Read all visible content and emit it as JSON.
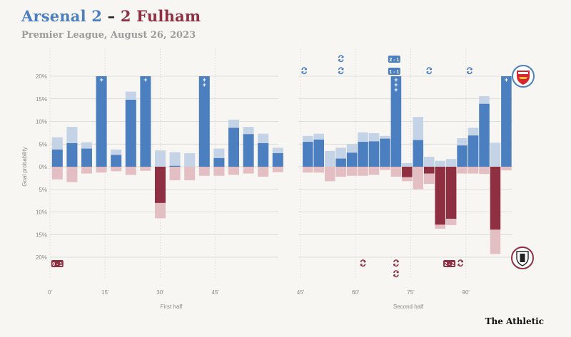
{
  "header": {
    "home_part": "Arsenal 2",
    "dash": " – ",
    "away_part": "2 Fulham",
    "subtitle": "Premier League, August 26, 2023",
    "brand": "The Athletic"
  },
  "colors": {
    "home": "#4b7fbf",
    "home_light": "#c4d3e6",
    "away": "#8e3041",
    "away_light": "#e3bec3",
    "grid": "#d4d4d0",
    "text": "#8a8a8a",
    "background": "#f7f6f2"
  },
  "chart_data": {
    "type": "bar",
    "ylabel": "Goal probability",
    "y_ticks": [
      "20%",
      "15%",
      "10%",
      "5%",
      "0%",
      "5%",
      "10%",
      "15%",
      "20%"
    ],
    "ylim": [
      -20,
      20
    ],
    "legend": {
      "top": "Arsenal badge (home, upward bars)",
      "bottom": "Fulham badge (away, downward bars)"
    },
    "panels": [
      {
        "xlabel": "First half",
        "x_ticks": [
          "0'",
          "15'",
          "30'",
          "45'"
        ],
        "x_tick_minutes": [
          0,
          15,
          30,
          45
        ],
        "x_range": [
          0,
          48
        ],
        "score_labels": [
          {
            "text": "0 - 1",
            "team": "away",
            "minute": 2
          }
        ],
        "sub_events": [],
        "bars": [
          {
            "minute": 2,
            "home": 3.8,
            "home_total": 6.5,
            "away": 0,
            "away_total": 2.8
          },
          {
            "minute": 6,
            "home": 5.2,
            "home_total": 8.8,
            "away": 0,
            "away_total": 3.4
          },
          {
            "minute": 10,
            "home": 4.0,
            "home_total": 5.4,
            "away": 0,
            "away_total": 1.5
          },
          {
            "minute": 14,
            "home": 20,
            "home_total": 20,
            "away": 0,
            "away_total": 1.3,
            "goals": 1
          },
          {
            "minute": 18,
            "home": 2.6,
            "home_total": 3.8,
            "away": 0,
            "away_total": 1.0
          },
          {
            "minute": 22,
            "home": 14.8,
            "home_total": 16.6,
            "away": 0,
            "away_total": 1.8
          },
          {
            "minute": 26,
            "home": 20,
            "home_total": 20,
            "away": 0,
            "away_total": 0.9,
            "goals": 1
          },
          {
            "minute": 30,
            "home": 0,
            "home_total": 3.6,
            "away": 8.0,
            "away_total": 11.4
          },
          {
            "minute": 34,
            "home": 0.2,
            "home_total": 3.2,
            "away": 0,
            "away_total": 3.0
          },
          {
            "minute": 38,
            "home": 0,
            "home_total": 3.0,
            "away": 0,
            "away_total": 3.0
          },
          {
            "minute": 42,
            "home": 20,
            "home_total": 20,
            "away": 0,
            "away_total": 2.0,
            "goals": 2
          },
          {
            "minute": 46,
            "home": 1.9,
            "home_total": 4.0,
            "away": 0,
            "away_total": 2.0
          },
          {
            "minute": 50,
            "home": 8.6,
            "home_total": 10.4,
            "away": 0,
            "away_total": 1.8
          },
          {
            "minute": 54,
            "home": 7.2,
            "home_total": 8.8,
            "away": 0,
            "away_total": 1.5
          },
          {
            "minute": 58,
            "home": 5.2,
            "home_total": 7.3,
            "away": 0,
            "away_total": 2.2
          },
          {
            "minute": 62,
            "home": 3.0,
            "home_total": 4.2,
            "away": 0,
            "away_total": 1.2
          }
        ]
      },
      {
        "xlabel": "Second half",
        "x_ticks": [
          "45'",
          "60'",
          "75'",
          "90'"
        ],
        "x_tick_minutes": [
          45,
          60,
          75,
          90
        ],
        "x_range": [
          45,
          101
        ],
        "score_labels": [
          {
            "text": "2 - 1",
            "team": "home",
            "minute": 70.5,
            "slot": "top1"
          },
          {
            "text": "1 - 1",
            "team": "home",
            "minute": 70.5,
            "slot": "top2"
          },
          {
            "text": "2 - 2",
            "team": "away",
            "minute": 85.5,
            "slot": "bottom"
          }
        ],
        "sub_events": [
          {
            "team": "home",
            "minute": 46,
            "count": 1
          },
          {
            "team": "home",
            "minute": 56,
            "count": 2
          },
          {
            "team": "home",
            "minute": 80,
            "count": 1
          },
          {
            "team": "home",
            "minute": 91,
            "count": 1
          },
          {
            "team": "away",
            "minute": 62,
            "count": 1
          },
          {
            "team": "away",
            "minute": 71,
            "count": 2
          },
          {
            "team": "away",
            "minute": 88.5,
            "count": 1
          }
        ],
        "bars": [
          {
            "minute": 47,
            "home": 5.5,
            "home_total": 6.8,
            "away": 0,
            "away_total": 1.3
          },
          {
            "minute": 50,
            "home": 6.0,
            "home_total": 7.3,
            "away": 0,
            "away_total": 1.3
          },
          {
            "minute": 53,
            "home": 0,
            "home_total": 3.5,
            "away": 0,
            "away_total": 3.2
          },
          {
            "minute": 56,
            "home": 1.8,
            "home_total": 4.2,
            "away": 0,
            "away_total": 2.2
          },
          {
            "minute": 59,
            "home": 3.1,
            "home_total": 5.0,
            "away": 0,
            "away_total": 2.0
          },
          {
            "minute": 62,
            "home": 5.5,
            "home_total": 7.6,
            "away": 0,
            "away_total": 2.0
          },
          {
            "minute": 65,
            "home": 5.6,
            "home_total": 7.4,
            "away": 0,
            "away_total": 1.8
          },
          {
            "minute": 68,
            "home": 6.2,
            "home_total": 6.8,
            "away": 0,
            "away_total": 0.7
          },
          {
            "minute": 71,
            "home": 20,
            "home_total": 20,
            "away": 0,
            "away_total": 2.2,
            "goals": 3
          },
          {
            "minute": 74,
            "home": 0,
            "home_total": 0.8,
            "away": 2.3,
            "away_total": 3.2
          },
          {
            "minute": 77,
            "home": 5.9,
            "home_total": 11.0,
            "away": 0,
            "away_total": 5.0
          },
          {
            "minute": 80,
            "home": 0,
            "home_total": 2.2,
            "away": 1.5,
            "away_total": 3.8
          },
          {
            "minute": 83,
            "home": 0,
            "home_total": 1.3,
            "away": 12.8,
            "away_total": 13.7
          },
          {
            "minute": 86,
            "home": 0,
            "home_total": 1.7,
            "away": 11.5,
            "away_total": 12.9
          },
          {
            "minute": 89,
            "home": 4.7,
            "home_total": 6.3,
            "away": 0,
            "away_total": 1.5
          },
          {
            "minute": 92,
            "home": 6.9,
            "home_total": 8.6,
            "away": 0,
            "away_total": 1.5
          },
          {
            "minute": 95,
            "home": 13.9,
            "home_total": 15.6,
            "away": 0,
            "away_total": 1.6
          },
          {
            "minute": 98,
            "home": 0,
            "home_total": 5.3,
            "away": 13.9,
            "away_total": 19.3
          },
          {
            "minute": 101,
            "home": 20,
            "home_total": 20,
            "away": 0,
            "away_total": 0.8,
            "goals": 1
          }
        ]
      }
    ]
  }
}
